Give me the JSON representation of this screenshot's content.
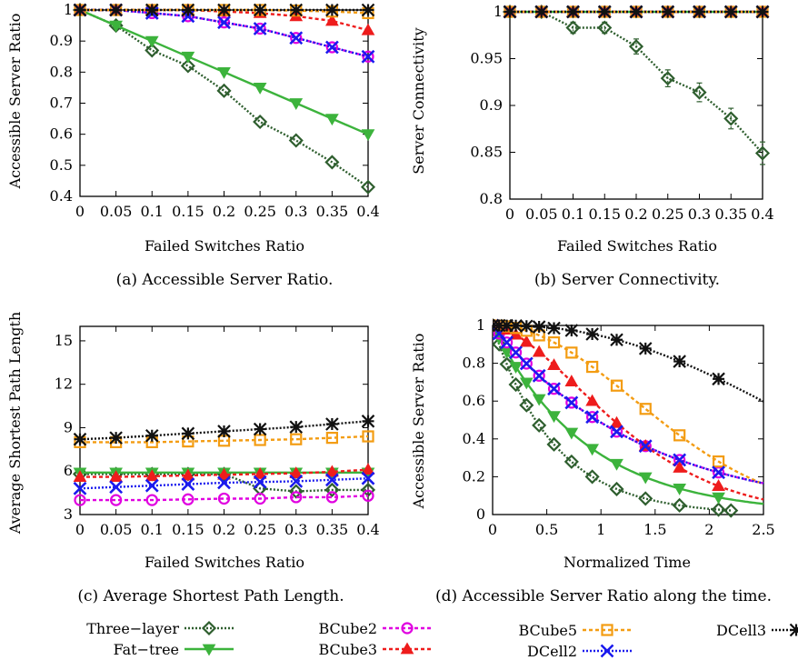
{
  "figure": {
    "legend": [
      {
        "series": "Three-layer",
        "label": "Three−layer"
      },
      {
        "series": "Fat-tree",
        "label": "Fat−tree"
      },
      {
        "series": "BCube2",
        "label": "BCube2"
      },
      {
        "series": "BCube3",
        "label": "BCube3"
      },
      {
        "series": "BCube5",
        "label": "BCube5"
      },
      {
        "series": "DCell2",
        "label": "DCell2"
      },
      {
        "series": "DCell3",
        "label": "DCell3"
      }
    ],
    "series_style": {
      "Three-layer": {
        "color": "#2e5e2e",
        "marker": "diamond",
        "dash": "2,2"
      },
      "Fat-tree": {
        "color": "#3cb33c",
        "marker": "triangle-down",
        "dash": ""
      },
      "BCube2": {
        "color": "#e000e0",
        "marker": "circle",
        "dash": "4,3"
      },
      "BCube3": {
        "color": "#ee1c1c",
        "marker": "triangle-up",
        "dash": "4,3"
      },
      "BCube5": {
        "color": "#f39c12",
        "marker": "square",
        "dash": "4,3"
      },
      "DCell2": {
        "color": "#1a1aee",
        "marker": "x",
        "dash": "2,2"
      },
      "DCell3": {
        "color": "#111111",
        "marker": "star",
        "dash": "2,2"
      }
    }
  },
  "chart_data": [
    {
      "type": "line",
      "caption": "(a)  Accessible Server Ratio.",
      "xlabel": "Failed Switches Ratio",
      "ylabel": "Accessible Server Ratio",
      "xlim": [
        0,
        0.4
      ],
      "ylim": [
        0.4,
        1.0
      ],
      "x_ticks": [
        0,
        0.05,
        0.1,
        0.15,
        0.2,
        0.25,
        0.3,
        0.35,
        0.4
      ],
      "x_tick_labels": [
        "0",
        "0.05",
        "0.1",
        "0.15",
        "0.2",
        "0.25",
        "0.3",
        "0.35",
        "0.4"
      ],
      "y_ticks": [
        0.4,
        0.5,
        0.6,
        0.7,
        0.8,
        0.9,
        1.0
      ],
      "y_tick_labels": [
        "0.4",
        "0.5",
        "0.6",
        "0.7",
        "0.8",
        "0.9",
        "1"
      ],
      "x": [
        0,
        0.05,
        0.1,
        0.15,
        0.2,
        0.25,
        0.3,
        0.35,
        0.4
      ],
      "series": [
        {
          "name": "Three-layer",
          "values": [
            1.0,
            0.95,
            0.87,
            0.82,
            0.74,
            0.64,
            0.58,
            0.51,
            0.43
          ]
        },
        {
          "name": "Fat-tree",
          "values": [
            1.0,
            0.95,
            0.9,
            0.85,
            0.8,
            0.75,
            0.7,
            0.65,
            0.6
          ]
        },
        {
          "name": "BCube2",
          "values": [
            1.0,
            1.0,
            0.99,
            0.98,
            0.96,
            0.94,
            0.91,
            0.88,
            0.85
          ]
        },
        {
          "name": "BCube3",
          "values": [
            1.0,
            1.0,
            1.0,
            1.0,
            0.995,
            0.99,
            0.98,
            0.965,
            0.935
          ]
        },
        {
          "name": "BCube5",
          "values": [
            1.0,
            1.0,
            1.0,
            1.0,
            1.0,
            1.0,
            0.998,
            0.995,
            0.99
          ]
        },
        {
          "name": "DCell2",
          "values": [
            1.0,
            1.0,
            0.99,
            0.98,
            0.96,
            0.94,
            0.91,
            0.88,
            0.85
          ]
        },
        {
          "name": "DCell3",
          "values": [
            1.0,
            1.0,
            1.0,
            1.0,
            1.0,
            1.0,
            1.0,
            1.0,
            1.0
          ]
        }
      ]
    },
    {
      "type": "line",
      "caption": "(b)  Server Connectivity.",
      "xlabel": "Failed Switches Ratio",
      "ylabel": "Server Connectivity",
      "xlim": [
        0,
        0.4
      ],
      "ylim": [
        0.8,
        1.0
      ],
      "x_ticks": [
        0,
        0.05,
        0.1,
        0.15,
        0.2,
        0.25,
        0.3,
        0.35,
        0.4
      ],
      "x_tick_labels": [
        "0",
        "0.05",
        "0.1",
        "0.15",
        "0.2",
        "0.25",
        "0.3",
        "0.35",
        "0.4"
      ],
      "y_ticks": [
        0.8,
        0.85,
        0.9,
        0.95,
        1.0
      ],
      "y_tick_labels": [
        "0.8",
        "0.85",
        "0.9",
        "0.95",
        "1"
      ],
      "x": [
        0,
        0.05,
        0.1,
        0.15,
        0.2,
        0.25,
        0.3,
        0.35,
        0.4
      ],
      "series": [
        {
          "name": "Three-layer",
          "values": [
            1.0,
            1.0,
            0.983,
            0.983,
            0.963,
            0.929,
            0.914,
            0.886,
            0.849
          ],
          "error": [
            0,
            0,
            0.006,
            0.006,
            0.008,
            0.009,
            0.01,
            0.011,
            0.012
          ]
        },
        {
          "name": "Fat-tree",
          "values": [
            1.0,
            1.0,
            1.0,
            1.0,
            1.0,
            1.0,
            1.0,
            1.0,
            1.0
          ]
        },
        {
          "name": "BCube2",
          "values": [
            1.0,
            1.0,
            1.0,
            1.0,
            1.0,
            1.0,
            1.0,
            1.0,
            1.0
          ]
        },
        {
          "name": "BCube3",
          "values": [
            1.0,
            1.0,
            1.0,
            1.0,
            1.0,
            1.0,
            1.0,
            1.0,
            1.0
          ]
        },
        {
          "name": "BCube5",
          "values": [
            1.0,
            1.0,
            1.0,
            1.0,
            1.0,
            1.0,
            1.0,
            1.0,
            1.0
          ]
        },
        {
          "name": "DCell2",
          "values": [
            1.0,
            1.0,
            1.0,
            1.0,
            1.0,
            1.0,
            1.0,
            1.0,
            1.0
          ]
        },
        {
          "name": "DCell3",
          "values": [
            1.0,
            1.0,
            1.0,
            1.0,
            1.0,
            1.0,
            1.0,
            1.0,
            1.0
          ]
        }
      ]
    },
    {
      "type": "line",
      "caption": "(c)  Average Shortest Path Length.",
      "xlabel": "Failed Switches Ratio",
      "ylabel": "Average Shortest Path Length",
      "xlim": [
        0,
        0.4
      ],
      "ylim": [
        3,
        16
      ],
      "x_ticks": [
        0,
        0.05,
        0.1,
        0.15,
        0.2,
        0.25,
        0.3,
        0.35,
        0.4
      ],
      "x_tick_labels": [
        "0",
        "0.05",
        "0.1",
        "0.15",
        "0.2",
        "0.25",
        "0.3",
        "0.35",
        "0.4"
      ],
      "y_ticks": [
        3,
        6,
        9,
        12,
        15
      ],
      "y_tick_labels": [
        "3",
        "6",
        "9",
        "12",
        "15"
      ],
      "x": [
        0,
        0.05,
        0.1,
        0.15,
        0.2,
        0.25,
        0.3,
        0.35,
        0.4
      ],
      "series": [
        {
          "name": "Three-layer",
          "values": [
            5.8,
            5.8,
            5.8,
            5.8,
            5.8,
            4.8,
            4.6,
            4.7,
            4.7
          ]
        },
        {
          "name": "Fat-tree",
          "values": [
            5.9,
            5.9,
            5.9,
            5.9,
            5.9,
            5.9,
            5.9,
            5.9,
            5.9
          ]
        },
        {
          "name": "BCube2",
          "values": [
            4.0,
            4.0,
            4.0,
            4.05,
            4.1,
            4.1,
            4.2,
            4.2,
            4.3
          ]
        },
        {
          "name": "BCube3",
          "values": [
            5.6,
            5.6,
            5.65,
            5.7,
            5.75,
            5.8,
            5.85,
            5.95,
            6.1
          ]
        },
        {
          "name": "BCube5",
          "values": [
            8.0,
            8.0,
            8.0,
            8.05,
            8.1,
            8.15,
            8.2,
            8.3,
            8.4
          ]
        },
        {
          "name": "DCell2",
          "values": [
            4.8,
            4.9,
            5.0,
            5.1,
            5.2,
            5.25,
            5.3,
            5.4,
            5.5
          ]
        },
        {
          "name": "DCell3",
          "values": [
            8.2,
            8.3,
            8.45,
            8.6,
            8.75,
            8.9,
            9.05,
            9.25,
            9.45
          ]
        }
      ]
    },
    {
      "type": "line",
      "caption": "(d)  Accessible Server Ratio along the time.",
      "xlabel": "Normalized Time",
      "ylabel": "Accessible Server Ratio",
      "xlim": [
        0,
        2.5
      ],
      "ylim": [
        0,
        1.0
      ],
      "x_ticks": [
        0,
        0.5,
        1,
        1.5,
        2,
        2.5
      ],
      "x_tick_labels": [
        "0",
        "0.5",
        "1",
        "1.5",
        "2",
        "2.5"
      ],
      "y_ticks": [
        0,
        0.2,
        0.4,
        0.6,
        0.8,
        1.0
      ],
      "y_tick_labels": [
        "0",
        "0.2",
        "0.4",
        "0.6",
        "0.8",
        "1"
      ],
      "decay": {
        "Three-layer": {
          "k": 0.78,
          "end": 2.2
        },
        "Fat-tree": {
          "k": 1.0,
          "end": 2.5
        },
        "BCube2": {
          "k": 0.72,
          "p": 0.92,
          "end": 2.5
        },
        "BCube3": {
          "k": 0.6,
          "p": 1.6,
          "end": 2.5
        },
        "BCube5": {
          "k": 0.45,
          "p": 1.95,
          "end": 2.5
        },
        "DCell2": {
          "k": 0.72,
          "p": 0.92,
          "end": 2.5
        },
        "DCell3": {
          "k": 0.3,
          "p": 2.4,
          "end": 2.5
        }
      }
    }
  ]
}
